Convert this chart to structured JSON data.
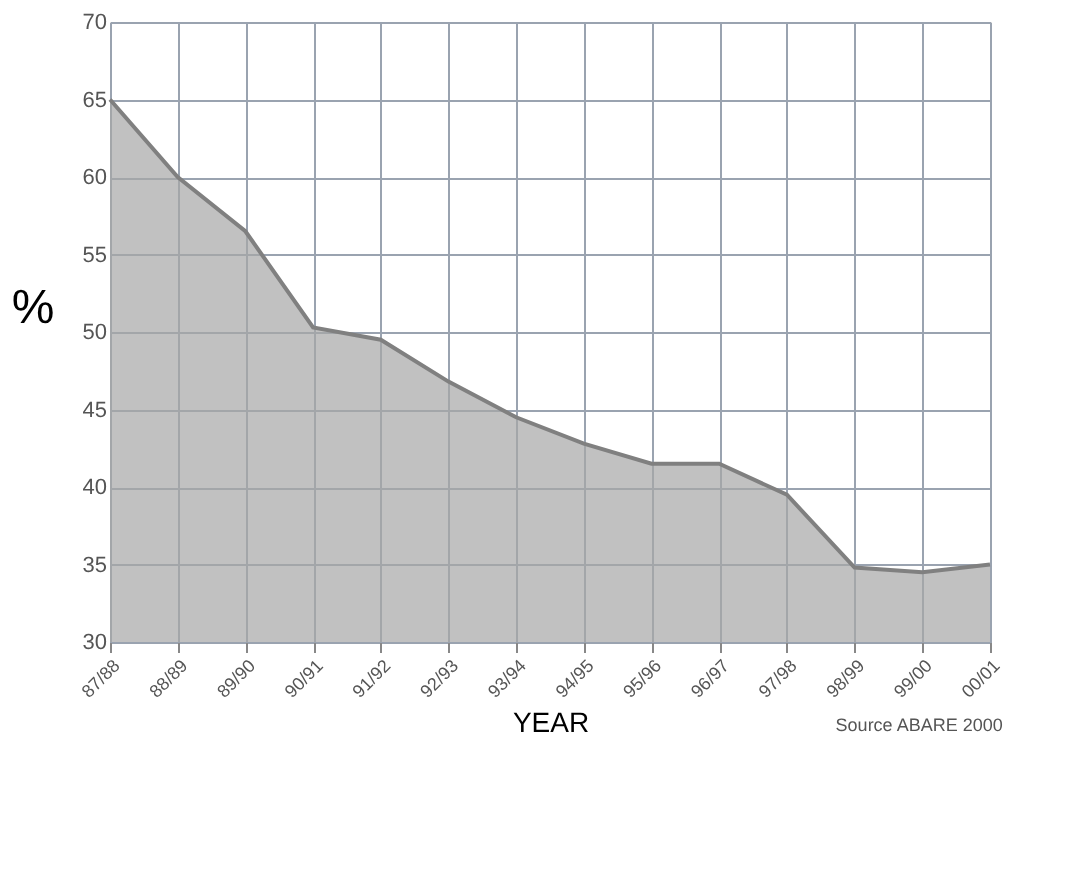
{
  "chart_data": {
    "type": "area",
    "xlabel": "YEAR",
    "ylabel": "%",
    "categories": [
      "87/88",
      "88/89",
      "89/90",
      "90/91",
      "91/92",
      "92/93",
      "93/94",
      "94/95",
      "95/96",
      "96/97",
      "97/98",
      "98/99",
      "99/00",
      "00/01"
    ],
    "series": [
      {
        "color": "#a6a6a6",
        "values": [
          65,
          60,
          56.5,
          50.3,
          49.5,
          46.8,
          44.5,
          42.8,
          41.5,
          41.5,
          39.5,
          34.8,
          34.5,
          35.0
        ]
      }
    ],
    "ylim": [
      30,
      70
    ],
    "yticks": [
      30,
      35,
      40,
      45,
      50,
      55,
      60,
      65,
      70
    ],
    "grid": true,
    "annotations": [
      "Source ABARE 2000"
    ]
  }
}
